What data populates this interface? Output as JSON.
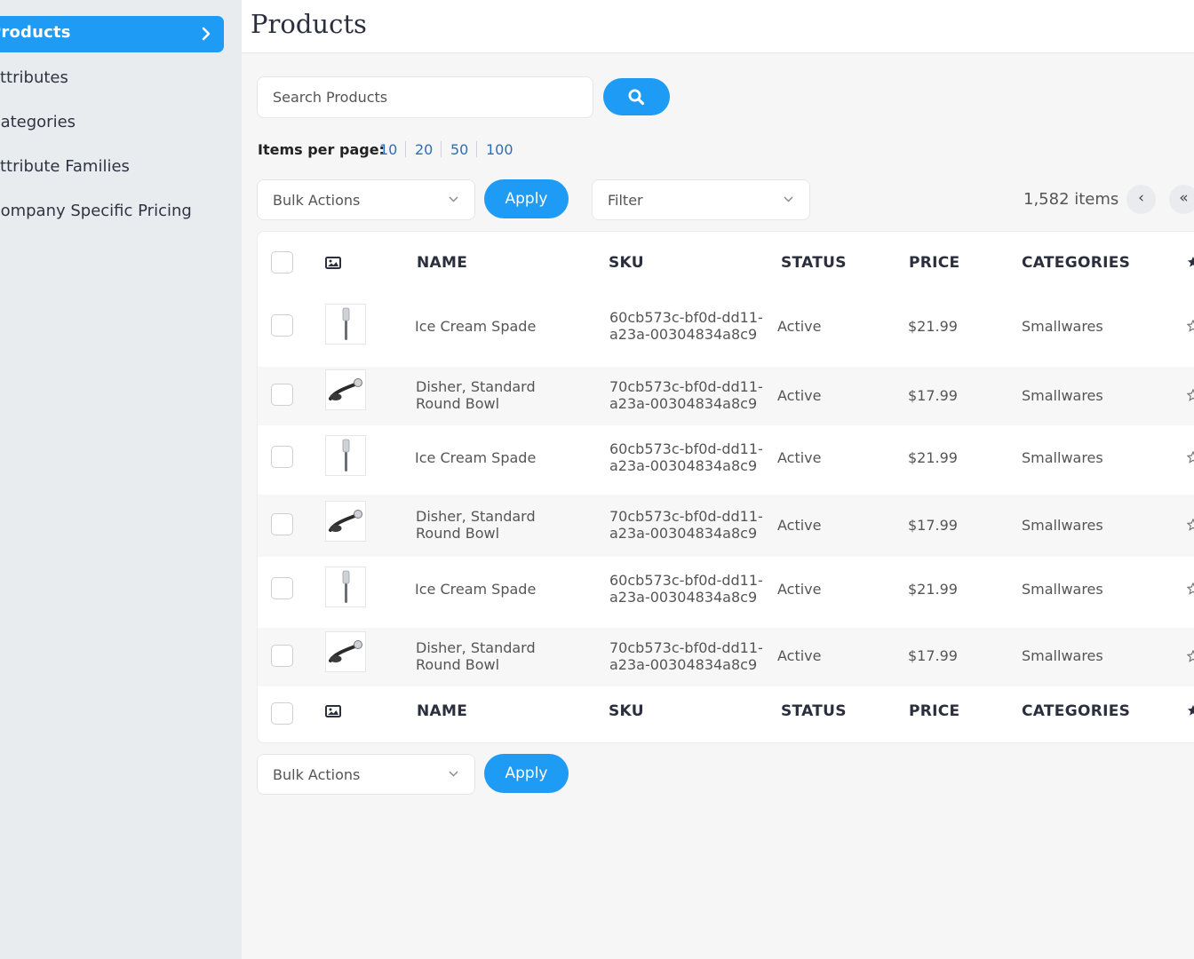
{
  "sidebar": {
    "items": [
      {
        "label": "Products",
        "active": true
      },
      {
        "label": "Attributes",
        "active": false
      },
      {
        "label": "Categories",
        "active": false
      },
      {
        "label": "Attribute Families",
        "active": false
      },
      {
        "label": "Company Specific Pricing",
        "active": false
      }
    ]
  },
  "header": {
    "title": "Products"
  },
  "search": {
    "placeholder": "Search Products",
    "button_icon": "search-icon"
  },
  "items_per_page": {
    "label": "Items per page:",
    "options": [
      "10",
      "20",
      "50",
      "100"
    ]
  },
  "bulk_actions": {
    "label": "Bulk Actions",
    "apply_label": "Apply"
  },
  "filter": {
    "label": "Filter"
  },
  "pagination": {
    "count": "1,582 items",
    "prev": "‹",
    "first": "«"
  },
  "table": {
    "columns": [
      "NAME",
      "SKU",
      "STATUS",
      "PRICE",
      "CATEGORIES"
    ],
    "rows": [
      {
        "name": "Ice Cream Spade",
        "sku": "60cb573c-bf0d-dd11-a23a-00304834a8c9",
        "status": "Active",
        "price": "$21.99",
        "category": "Smallwares",
        "thumb": "spade"
      },
      {
        "name": "Disher, Standard Round Bowl",
        "sku": "70cb573c-bf0d-dd11-a23a-00304834a8c9",
        "status": "Active",
        "price": "$17.99",
        "category": "Smallwares",
        "thumb": "disher"
      },
      {
        "name": "Ice Cream Spade",
        "sku": "60cb573c-bf0d-dd11-a23a-00304834a8c9",
        "status": "Active",
        "price": "$21.99",
        "category": "Smallwares",
        "thumb": "spade"
      },
      {
        "name": "Disher, Standard Round Bowl",
        "sku": "70cb573c-bf0d-dd11-a23a-00304834a8c9",
        "status": "Active",
        "price": "$17.99",
        "category": "Smallwares",
        "thumb": "disher"
      },
      {
        "name": "Ice Cream Spade",
        "sku": "60cb573c-bf0d-dd11-a23a-00304834a8c9",
        "status": "Active",
        "price": "$21.99",
        "category": "Smallwares",
        "thumb": "spade"
      },
      {
        "name": "Disher, Standard Round Bowl",
        "sku": "70cb573c-bf0d-dd11-a23a-00304834a8c9",
        "status": "Active",
        "price": "$17.99",
        "category": "Smallwares",
        "thumb": "disher"
      }
    ]
  },
  "colors": {
    "accent": "#1e9bf5",
    "sidebar_bg": "#e9ecef",
    "link": "#2f6db6"
  }
}
